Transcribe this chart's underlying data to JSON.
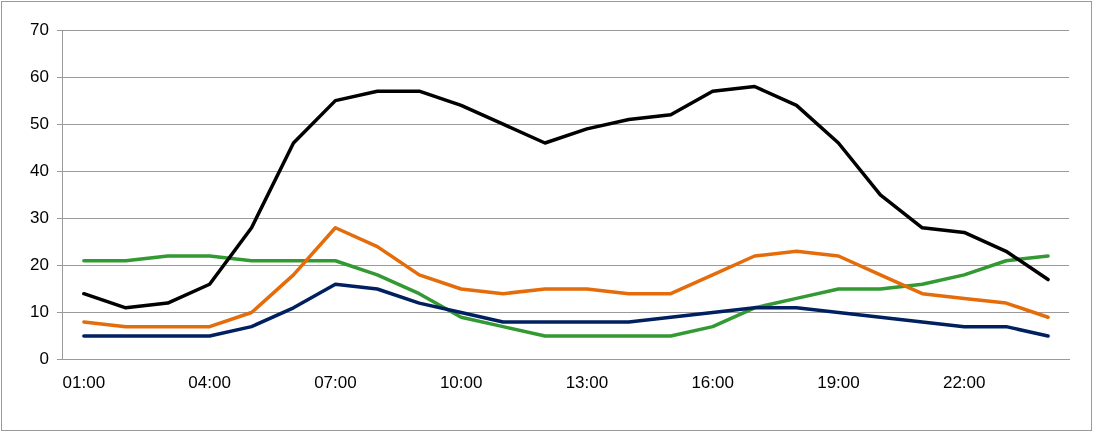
{
  "chart_data": {
    "type": "line",
    "categories": [
      "01:00",
      null,
      null,
      "04:00",
      null,
      null,
      "07:00",
      null,
      null,
      "10:00",
      null,
      null,
      "13:00",
      null,
      null,
      "16:00",
      null,
      null,
      "19:00",
      null,
      null,
      "22:00",
      null,
      null
    ],
    "series": [
      {
        "color": "#000000",
        "values": [
          14,
          11,
          12,
          16,
          28,
          46,
          55,
          57,
          57,
          54,
          50,
          46,
          49,
          51,
          52,
          57,
          58,
          54,
          46,
          35,
          28,
          27,
          23,
          17
        ]
      },
      {
        "color": "#e46c0a",
        "values": [
          8,
          7,
          7,
          7,
          10,
          18,
          28,
          24,
          18,
          15,
          14,
          15,
          15,
          14,
          14,
          18,
          22,
          23,
          22,
          18,
          14,
          13,
          12,
          9
        ]
      },
      {
        "color": "#002060",
        "values": [
          5,
          5,
          5,
          5,
          7,
          11,
          16,
          15,
          12,
          10,
          8,
          8,
          8,
          8,
          9,
          10,
          11,
          11,
          10,
          9,
          8,
          7,
          7,
          5
        ]
      },
      {
        "color": "#339933",
        "values": [
          21,
          21,
          22,
          22,
          21,
          21,
          21,
          18,
          14,
          9,
          7,
          5,
          5,
          5,
          5,
          7,
          11,
          13,
          15,
          15,
          16,
          18,
          21,
          22
        ]
      }
    ],
    "ylim": [
      0,
      70
    ],
    "yticks": [
      0,
      10,
      20,
      30,
      40,
      50,
      60,
      70
    ],
    "grid": "y",
    "legend": false,
    "marker": "none",
    "line_style": "solid"
  }
}
